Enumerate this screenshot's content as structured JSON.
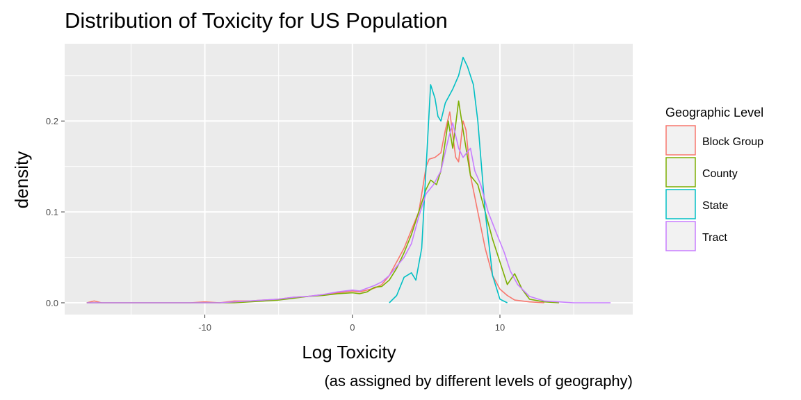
{
  "chart_data": {
    "type": "line",
    "title": "Distribution of Toxicity for US Population",
    "xlabel": "Log Toxicity",
    "ylabel": "density",
    "caption": "(as assigned by different levels of geography)",
    "xlim": [
      -19.5,
      19
    ],
    "ylim": [
      -0.013,
      0.285
    ],
    "x_ticks": [
      -10,
      0,
      10
    ],
    "x_tick_labels": [
      "-10",
      "0",
      "10"
    ],
    "y_ticks": [
      0.0,
      0.1,
      0.2
    ],
    "y_tick_labels": [
      "0.0",
      "0.1",
      "0.2"
    ],
    "grid": true,
    "panel_background": "#ebebeb",
    "legend": {
      "title": "Geographic Level",
      "position": "right"
    },
    "series": [
      {
        "name": "Block Group",
        "color": "#f8766d",
        "points": [
          [
            -18,
            0
          ],
          [
            -17.5,
            0.002
          ],
          [
            -17,
            0
          ],
          [
            -11,
            0
          ],
          [
            -10,
            0.001
          ],
          [
            -9,
            0
          ],
          [
            -8,
            0.002
          ],
          [
            -7,
            0.002
          ],
          [
            -6,
            0.003
          ],
          [
            -5,
            0.004
          ],
          [
            -4,
            0.006
          ],
          [
            -3,
            0.007
          ],
          [
            -2,
            0.009
          ],
          [
            -1,
            0.011
          ],
          [
            0,
            0.013
          ],
          [
            0.5,
            0.012
          ],
          [
            1,
            0.014
          ],
          [
            1.5,
            0.016
          ],
          [
            2,
            0.02
          ],
          [
            2.5,
            0.03
          ],
          [
            3,
            0.045
          ],
          [
            3.5,
            0.06
          ],
          [
            4,
            0.08
          ],
          [
            4.5,
            0.1
          ],
          [
            4.8,
            0.13
          ],
          [
            5,
            0.15
          ],
          [
            5.2,
            0.158
          ],
          [
            5.6,
            0.16
          ],
          [
            6,
            0.165
          ],
          [
            6.3,
            0.19
          ],
          [
            6.6,
            0.21
          ],
          [
            6.8,
            0.185
          ],
          [
            7,
            0.16
          ],
          [
            7.2,
            0.155
          ],
          [
            7.5,
            0.2
          ],
          [
            7.7,
            0.19
          ],
          [
            8,
            0.14
          ],
          [
            8.5,
            0.1
          ],
          [
            9,
            0.06
          ],
          [
            9.5,
            0.03
          ],
          [
            10,
            0.015
          ],
          [
            10.5,
            0.008
          ],
          [
            11,
            0.003
          ],
          [
            12,
            0.001
          ],
          [
            13,
            0
          ]
        ]
      },
      {
        "name": "County",
        "color": "#7cae00",
        "points": [
          [
            -18,
            0
          ],
          [
            -8,
            0
          ],
          [
            -7,
            0.001
          ],
          [
            -6,
            0.002
          ],
          [
            -5,
            0.003
          ],
          [
            -4,
            0.005
          ],
          [
            -3,
            0.007
          ],
          [
            -2,
            0.008
          ],
          [
            -1,
            0.01
          ],
          [
            0,
            0.011
          ],
          [
            0.5,
            0.01
          ],
          [
            1,
            0.012
          ],
          [
            1.5,
            0.017
          ],
          [
            2,
            0.018
          ],
          [
            2.5,
            0.025
          ],
          [
            3,
            0.038
          ],
          [
            3.5,
            0.055
          ],
          [
            4,
            0.075
          ],
          [
            4.5,
            0.1
          ],
          [
            5,
            0.125
          ],
          [
            5.3,
            0.135
          ],
          [
            5.7,
            0.13
          ],
          [
            6,
            0.145
          ],
          [
            6.5,
            0.2
          ],
          [
            6.8,
            0.17
          ],
          [
            7.2,
            0.222
          ],
          [
            7.5,
            0.19
          ],
          [
            8,
            0.14
          ],
          [
            8.5,
            0.13
          ],
          [
            9,
            0.1
          ],
          [
            9.5,
            0.07
          ],
          [
            10,
            0.045
          ],
          [
            10.5,
            0.02
          ],
          [
            11,
            0.032
          ],
          [
            11.5,
            0.015
          ],
          [
            12,
            0.004
          ],
          [
            13,
            0.001
          ],
          [
            14,
            0
          ]
        ]
      },
      {
        "name": "State",
        "color": "#00bfc4",
        "points": [
          [
            2.5,
            0
          ],
          [
            3,
            0.008
          ],
          [
            3.5,
            0.028
          ],
          [
            4,
            0.033
          ],
          [
            4.3,
            0.025
          ],
          [
            4.7,
            0.06
          ],
          [
            5,
            0.15
          ],
          [
            5.3,
            0.24
          ],
          [
            5.6,
            0.225
          ],
          [
            5.8,
            0.205
          ],
          [
            6,
            0.2
          ],
          [
            6.3,
            0.22
          ],
          [
            6.8,
            0.235
          ],
          [
            7.2,
            0.25
          ],
          [
            7.5,
            0.27
          ],
          [
            7.8,
            0.26
          ],
          [
            8.2,
            0.24
          ],
          [
            8.5,
            0.2
          ],
          [
            9,
            0.1
          ],
          [
            9.5,
            0.03
          ],
          [
            10,
            0.004
          ],
          [
            10.5,
            0
          ]
        ]
      },
      {
        "name": "Tract",
        "color": "#c77cff",
        "points": [
          [
            -18,
            0
          ],
          [
            -9,
            0
          ],
          [
            -8,
            0.001
          ],
          [
            -7,
            0.002
          ],
          [
            -6,
            0.003
          ],
          [
            -5,
            0.004
          ],
          [
            -4,
            0.006
          ],
          [
            -3,
            0.007
          ],
          [
            -2,
            0.009
          ],
          [
            -1,
            0.012
          ],
          [
            0,
            0.014
          ],
          [
            0.5,
            0.013
          ],
          [
            1,
            0.016
          ],
          [
            1.5,
            0.019
          ],
          [
            2,
            0.023
          ],
          [
            2.5,
            0.03
          ],
          [
            3,
            0.04
          ],
          [
            3.5,
            0.05
          ],
          [
            4,
            0.065
          ],
          [
            4.5,
            0.095
          ],
          [
            5,
            0.12
          ],
          [
            5.5,
            0.13
          ],
          [
            6,
            0.145
          ],
          [
            6.5,
            0.18
          ],
          [
            6.8,
            0.198
          ],
          [
            7.2,
            0.17
          ],
          [
            7.5,
            0.16
          ],
          [
            8,
            0.17
          ],
          [
            8.3,
            0.145
          ],
          [
            8.7,
            0.13
          ],
          [
            9.2,
            0.1
          ],
          [
            9.8,
            0.075
          ],
          [
            10.3,
            0.055
          ],
          [
            10.7,
            0.035
          ],
          [
            11.2,
            0.02
          ],
          [
            12,
            0.007
          ],
          [
            13,
            0.002
          ],
          [
            14,
            0.001
          ],
          [
            15,
            0
          ],
          [
            17.5,
            0
          ]
        ]
      }
    ]
  }
}
